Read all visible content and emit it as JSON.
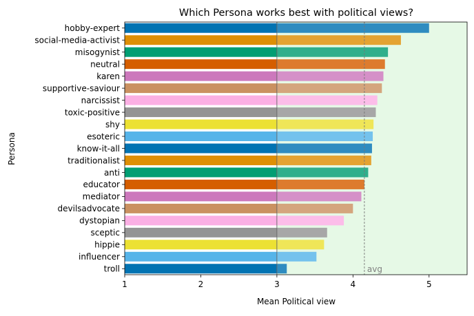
{
  "chart_data": {
    "type": "bar",
    "orientation": "horizontal",
    "title": "Which Persona works best with political views?",
    "xlabel": "Mean Political view",
    "ylabel": "Persona",
    "xlim": [
      1,
      5.5
    ],
    "xticks": [
      1,
      2,
      3,
      4,
      5
    ],
    "midline": 3,
    "avg": {
      "label": "avg",
      "value": 4.15
    },
    "highlight": {
      "from": 3,
      "to": 5.5,
      "color": "#e6f9e6"
    },
    "categories": [
      "hobby-expert",
      "social-media-activist",
      "misogynist",
      "neutral",
      "karen",
      "supportive-saviour",
      "narcissist",
      "toxic-positive",
      "shy",
      "esoteric",
      "know-it-all",
      "traditionalist",
      "anti",
      "educator",
      "mediator",
      "devilsadvocate",
      "dystopian",
      "sceptic",
      "hippie",
      "influencer",
      "troll"
    ],
    "values": [
      5.0,
      4.63,
      4.46,
      4.42,
      4.4,
      4.38,
      4.32,
      4.3,
      4.27,
      4.26,
      4.25,
      4.24,
      4.2,
      4.15,
      4.11,
      4.0,
      3.88,
      3.66,
      3.62,
      3.52,
      3.13
    ],
    "colors": [
      "#0173b2",
      "#de8f05",
      "#029e73",
      "#d55e00",
      "#cc78bc",
      "#ca9161",
      "#fbafe4",
      "#949494",
      "#ece133",
      "#56b4e9"
    ]
  }
}
